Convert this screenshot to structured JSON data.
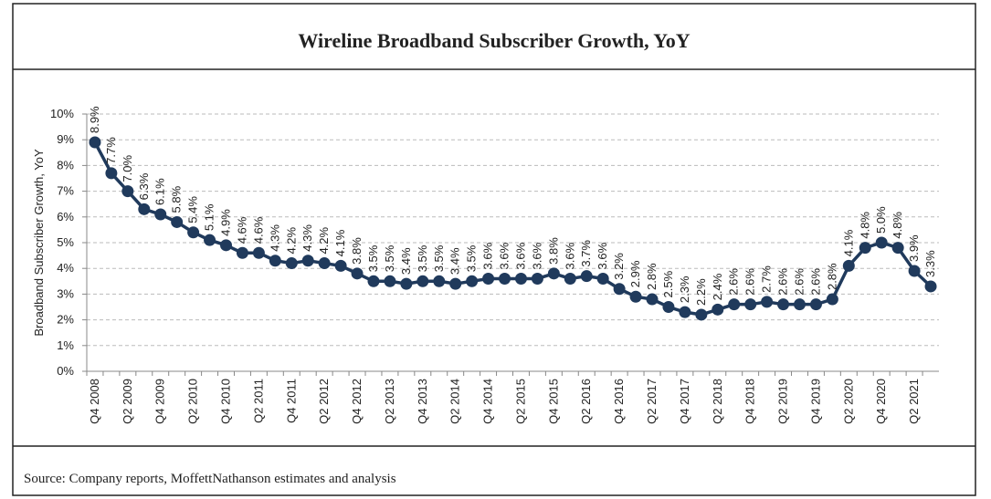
{
  "chart_data": {
    "type": "line",
    "title": "Wireline Broadband Subscriber Growth, YoY",
    "y_label": "Broadband Subscriber Growth, YoY",
    "source": "Source: Company reports, MoffettNathanson estimates and analysis",
    "categories": [
      "Q4 2008",
      null,
      "Q2 2009",
      null,
      "Q4 2009",
      null,
      "Q2 2010",
      null,
      "Q4 2010",
      null,
      "Q2 2011",
      null,
      "Q4 2011",
      null,
      "Q2 2012",
      null,
      "Q4 2012",
      null,
      "Q2 2013",
      null,
      "Q4 2013",
      null,
      "Q2 2014",
      null,
      "Q4 2014",
      null,
      "Q2 2015",
      null,
      "Q4 2015",
      null,
      "Q2 2016",
      null,
      "Q4 2016",
      null,
      "Q2 2017",
      null,
      "Q4 2017",
      null,
      "Q2 2018",
      null,
      "Q4 2018",
      null,
      "Q2 2019",
      null,
      "Q4 2019",
      null,
      "Q2 2020",
      null,
      "Q4 2020",
      null,
      "Q2 2021",
      null
    ],
    "series": [
      {
        "name": "Broadband Subscriber Growth, YoY",
        "color": "#203a5c",
        "values": [
          8.9,
          7.7,
          7.0,
          6.3,
          6.1,
          5.8,
          5.4,
          5.1,
          4.9,
          4.6,
          4.6,
          4.3,
          4.2,
          4.3,
          4.2,
          4.1,
          3.8,
          3.5,
          3.5,
          3.4,
          3.5,
          3.5,
          3.4,
          3.5,
          3.6,
          3.6,
          3.6,
          3.6,
          3.8,
          3.6,
          3.7,
          3.6,
          3.2,
          2.9,
          2.8,
          2.5,
          2.3,
          2.2,
          2.4,
          2.6,
          2.6,
          2.7,
          2.6,
          2.6,
          2.6,
          2.8,
          4.1,
          4.8,
          5.0,
          4.8,
          3.9,
          3.3
        ],
        "value_labels": [
          "8.9%",
          "7.7%",
          "7.0%",
          "6.3%",
          "6.1%",
          "5.8%",
          "5.4%",
          "5.1%",
          "4.9%",
          "4.6%",
          "4.6%",
          "4.3%",
          "4.2%",
          "4.3%",
          "4.2%",
          "4.1%",
          "3.8%",
          "3.5%",
          "3.5%",
          "3.4%",
          "3.5%",
          "3.5%",
          "3.4%",
          "3.5%",
          "3.6%",
          "3.6%",
          "3.6%",
          "3.6%",
          "3.8%",
          "3.6%",
          "3.7%",
          "3.6%",
          "3.2%",
          "2.9%",
          "2.8%",
          "2.5%",
          "2.3%",
          "2.2%",
          "2.4%",
          "2.6%",
          "2.6%",
          "2.7%",
          "2.6%",
          "2.6%",
          "2.6%",
          "2.8%",
          "4.1%",
          "4.8%",
          "5.0%",
          "4.8%",
          "3.9%",
          "3.3%"
        ]
      }
    ],
    "ylim": [
      0,
      10
    ],
    "yticks": [
      {
        "value": 0,
        "label": "0%"
      },
      {
        "value": 1,
        "label": "1%"
      },
      {
        "value": 2,
        "label": "2%"
      },
      {
        "value": 3,
        "label": "3%"
      },
      {
        "value": 4,
        "label": "4%"
      },
      {
        "value": 5,
        "label": "5%"
      },
      {
        "value": 6,
        "label": "6%"
      },
      {
        "value": 7,
        "label": "7%"
      },
      {
        "value": 8,
        "label": "8%"
      },
      {
        "value": 9,
        "label": "9%"
      },
      {
        "value": 10,
        "label": "10%"
      }
    ],
    "grid": true
  }
}
